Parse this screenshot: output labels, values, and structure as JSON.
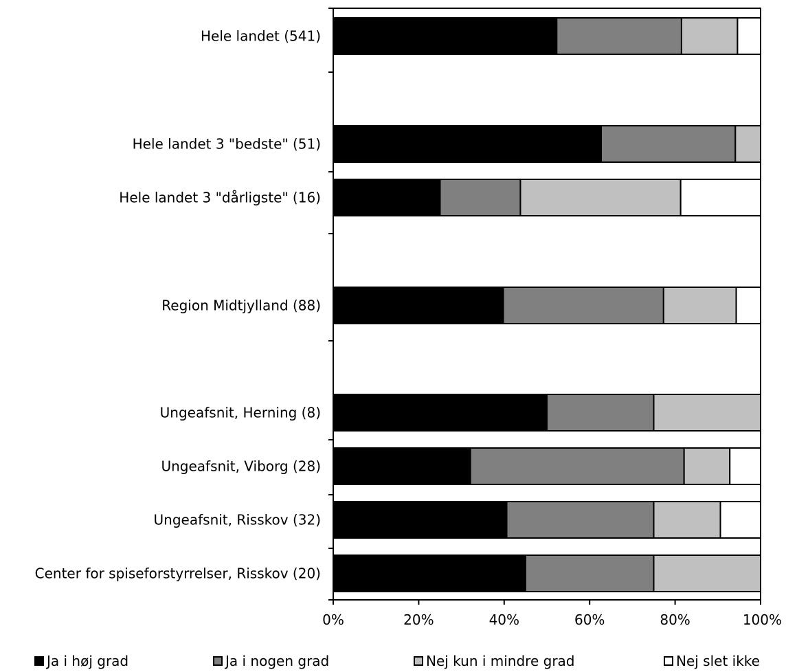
{
  "chart_data": {
    "type": "bar",
    "orientation": "horizontal",
    "stacked": "percent",
    "categories": [
      "Hele landet  (541)",
      "Hele landet 3 \"bedste\" (51)",
      "Hele landet 3 \"dårligste\" (16)",
      "Region Midtjylland (88)",
      "Ungeafsnit, Herning (8)",
      "Ungeafsnit, Viborg (28)",
      "Ungeafsnit, Risskov (32)",
      "Center for spiseforstyrrelser, Risskov (20)"
    ],
    "series": [
      {
        "name": "Ja i høj grad",
        "color": "#000000",
        "values": [
          52.3,
          62.7,
          25.0,
          39.8,
          50.0,
          32.1,
          40.6,
          45.0
        ]
      },
      {
        "name": "Ja i nogen grad",
        "color": "#808080",
        "values": [
          29.2,
          31.4,
          18.8,
          37.5,
          25.0,
          50.0,
          34.4,
          30.0
        ]
      },
      {
        "name": "Nej kun i mindre grad",
        "color": "#c0c0c0",
        "values": [
          13.1,
          5.9,
          37.5,
          17.0,
          25.0,
          10.7,
          15.6,
          25.0
        ]
      },
      {
        "name": "Nej slet ikke",
        "color": "#ffffff",
        "values": [
          5.4,
          0.0,
          18.7,
          5.7,
          0.0,
          7.2,
          9.4,
          0.0
        ]
      }
    ],
    "xlim": [
      0,
      100
    ],
    "xticks": [
      "0%",
      "20%",
      "40%",
      "60%",
      "80%",
      "100%"
    ],
    "legend": "bottom",
    "grid": false
  },
  "legend_items": [
    "Ja i høj grad",
    "Ja i nogen grad",
    "Nej kun i mindre grad",
    "Nej slet ikke"
  ]
}
